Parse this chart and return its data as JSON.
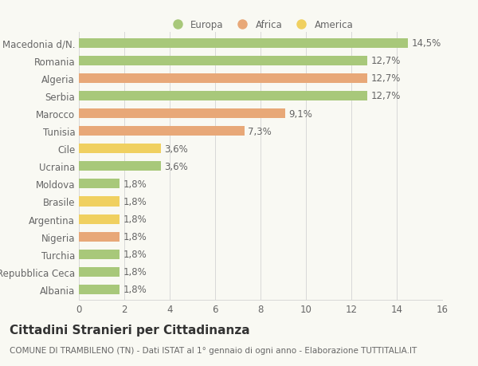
{
  "categories": [
    "Macedonia d/N.",
    "Romania",
    "Algeria",
    "Serbia",
    "Marocco",
    "Tunisia",
    "Cile",
    "Ucraina",
    "Moldova",
    "Brasile",
    "Argentina",
    "Nigeria",
    "Turchia",
    "Repubblica Ceca",
    "Albania"
  ],
  "values": [
    14.5,
    12.7,
    12.7,
    12.7,
    9.1,
    7.3,
    3.6,
    3.6,
    1.8,
    1.8,
    1.8,
    1.8,
    1.8,
    1.8,
    1.8
  ],
  "labels": [
    "14,5%",
    "12,7%",
    "12,7%",
    "12,7%",
    "9,1%",
    "7,3%",
    "3,6%",
    "3,6%",
    "1,8%",
    "1,8%",
    "1,8%",
    "1,8%",
    "1,8%",
    "1,8%",
    "1,8%"
  ],
  "colors": [
    "#a8c87a",
    "#a8c87a",
    "#e8a878",
    "#a8c87a",
    "#e8a878",
    "#e8a878",
    "#f0d060",
    "#a8c87a",
    "#a8c87a",
    "#f0d060",
    "#f0d060",
    "#e8a878",
    "#a8c87a",
    "#a8c87a",
    "#a8c87a"
  ],
  "legend": [
    {
      "label": "Europa",
      "color": "#a8c87a"
    },
    {
      "label": "Africa",
      "color": "#e8a878"
    },
    {
      "label": "America",
      "color": "#f0d060"
    }
  ],
  "xlim": [
    0,
    16
  ],
  "xticks": [
    0,
    2,
    4,
    6,
    8,
    10,
    12,
    14,
    16
  ],
  "title": "Cittadini Stranieri per Cittadinanza",
  "subtitle": "COMUNE DI TRAMBILENO (TN) - Dati ISTAT al 1° gennaio di ogni anno - Elaborazione TUTTITALIA.IT",
  "background_color": "#f9f9f3",
  "grid_color": "#d8d8d8",
  "text_color": "#666666",
  "label_fontsize": 8.5,
  "tick_fontsize": 8.5,
  "title_fontsize": 11,
  "subtitle_fontsize": 7.5,
  "bar_height": 0.55
}
